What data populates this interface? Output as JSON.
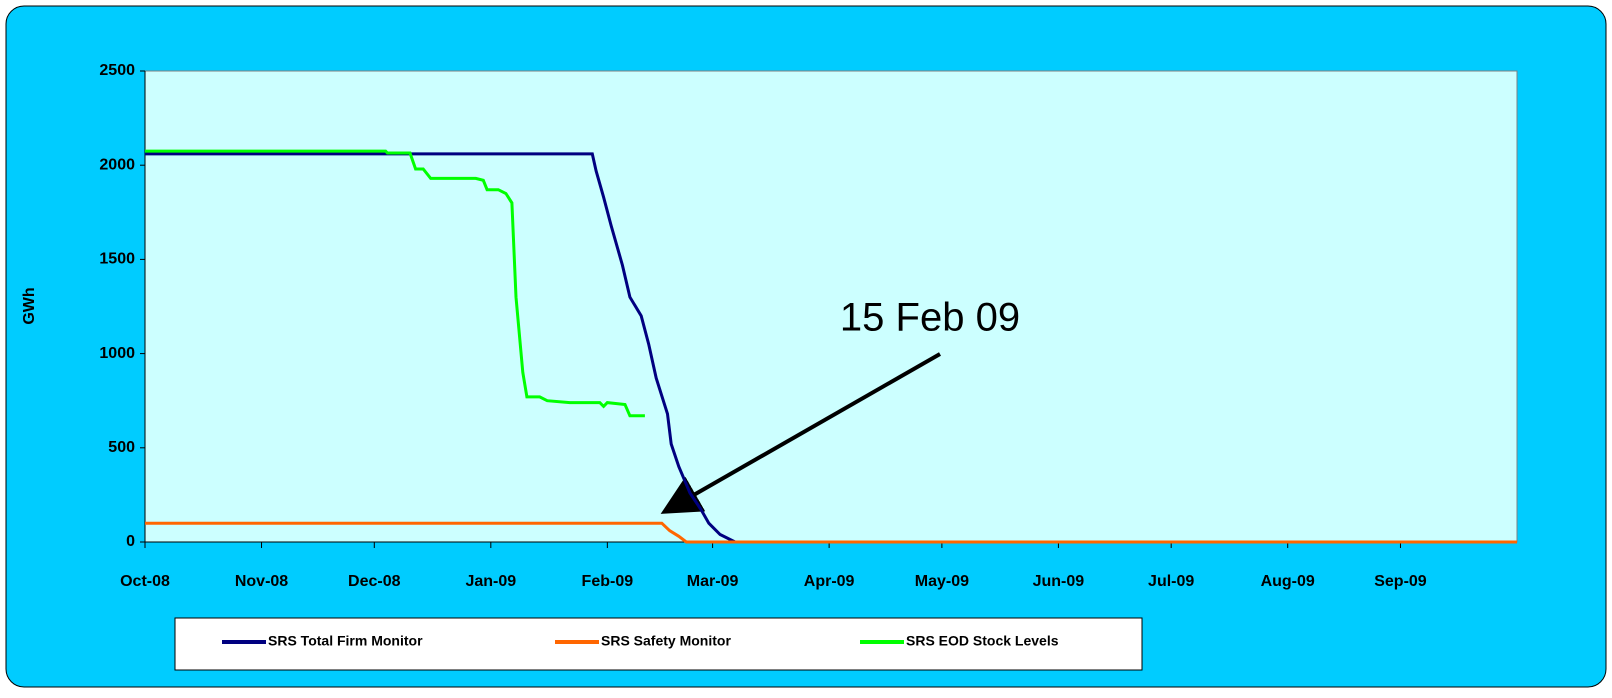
{
  "chart_data": {
    "type": "line",
    "y_label": "GWh",
    "annotation": "15 Feb 09",
    "xlim": [
      0,
      365
    ],
    "xticks": [
      {
        "value": 0,
        "label": "Oct-08"
      },
      {
        "value": 31,
        "label": "Nov-08"
      },
      {
        "value": 61,
        "label": "Dec-08"
      },
      {
        "value": 92,
        "label": "Jan-09"
      },
      {
        "value": 123,
        "label": "Feb-09"
      },
      {
        "value": 151,
        "label": "Mar-09"
      },
      {
        "value": 182,
        "label": "Apr-09"
      },
      {
        "value": 212,
        "label": "May-09"
      },
      {
        "value": 243,
        "label": "Jun-09"
      },
      {
        "value": 273,
        "label": "Jul-09"
      },
      {
        "value": 304,
        "label": "Aug-09"
      },
      {
        "value": 334,
        "label": "Sep-09"
      }
    ],
    "ylim": [
      0,
      2500
    ],
    "yticks": [
      0,
      500,
      1000,
      1500,
      2000,
      2500
    ],
    "legend": "bottom",
    "series": [
      {
        "name": "SRS Total Firm Monitor",
        "color": "#000080",
        "x": [
          0,
          119,
          120,
          122,
          124,
          127,
          129,
          132,
          134,
          136,
          139,
          140,
          142,
          145,
          148,
          150,
          153,
          157,
          365
        ],
        "values": [
          2060,
          2060,
          1970,
          1830,
          1680,
          1470,
          1300,
          1200,
          1050,
          870,
          680,
          520,
          400,
          260,
          170,
          100,
          40,
          0,
          0
        ]
      },
      {
        "name": "SRS Safety Monitor",
        "color": "#ff6600",
        "x": [
          0,
          137.5,
          139.6,
          142,
          144,
          365
        ],
        "values": [
          100,
          100,
          60,
          30,
          0,
          0
        ]
      },
      {
        "name": "SRS EOD Stock Levels",
        "color": "#00ff00",
        "x": [
          0,
          64,
          64.5,
          70.5,
          72,
          74,
          76,
          88,
          90,
          91,
          94,
          96,
          97.6,
          98.7,
          100.5,
          101.6,
          105,
          107,
          113,
          121,
          122,
          123,
          127.7,
          129,
          133
        ],
        "values": [
          2075,
          2075,
          2065,
          2065,
          1980,
          1980,
          1930,
          1930,
          1920,
          1870,
          1870,
          1850,
          1800,
          1300,
          900,
          770,
          770,
          750,
          740,
          740,
          720,
          740,
          730,
          670,
          670
        ]
      }
    ]
  }
}
